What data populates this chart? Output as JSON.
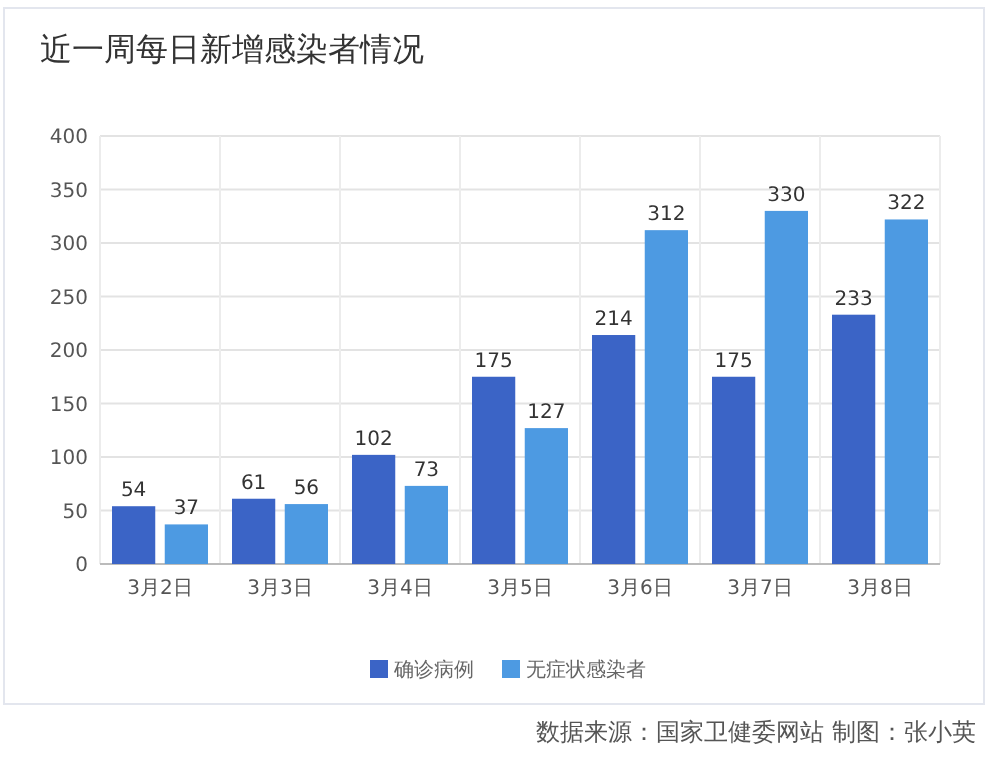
{
  "chart_data": {
    "type": "bar",
    "title": "近一周每日新增感染者情况",
    "categories": [
      "3月2日",
      "3月3日",
      "3月4日",
      "3月5日",
      "3月6日",
      "3月7日",
      "3月8日"
    ],
    "series": [
      {
        "name": "确诊病例",
        "color": "#3b64c6",
        "values": [
          54,
          61,
          102,
          175,
          214,
          175,
          233
        ]
      },
      {
        "name": "无症状感染者",
        "color": "#4d9ae2",
        "values": [
          37,
          56,
          73,
          127,
          312,
          330,
          322
        ]
      }
    ],
    "ylim": [
      0,
      400
    ],
    "yticks": [
      0,
      50,
      100,
      150,
      200,
      250,
      300,
      350,
      400
    ],
    "grid": true,
    "legend": "bottom",
    "data_labels": true,
    "annotations": [
      "数据来源：国家卫健委网站  制图：张小英"
    ]
  }
}
